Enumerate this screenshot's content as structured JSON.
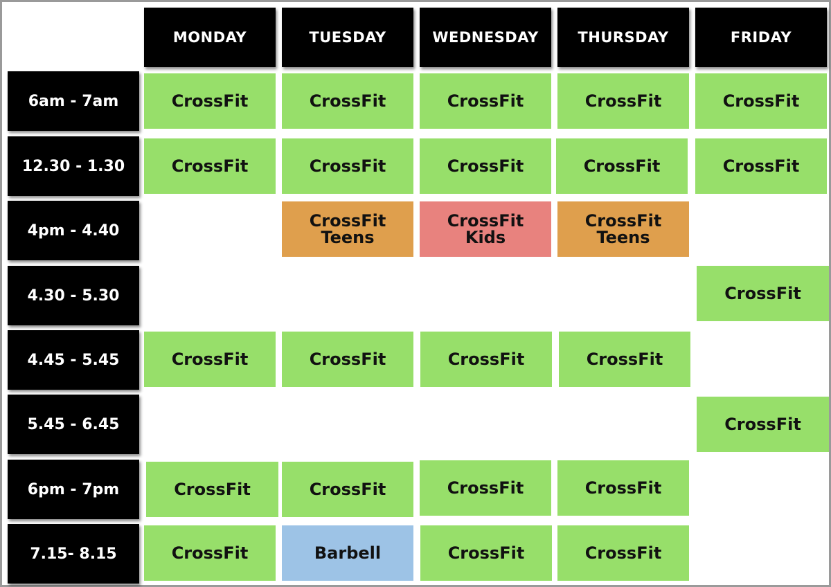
{
  "days": [
    "MONDAY",
    "TUESDAY",
    "WEDNESDAY",
    "THURSDAY",
    "FRIDAY"
  ],
  "times": [
    "6am - 7am",
    "12.30 - 1.30",
    "4pm - 4.40",
    "4.30 - 5.30",
    "4.45 - 5.45",
    "5.45 - 6.45",
    "6pm - 7pm",
    "7.15- 8.15"
  ],
  "colors": {
    "crossfit": "#97df6a",
    "teens": "#df9f4d",
    "kids": "#e8827e",
    "barbell": "#9dc3e6",
    "header_bg": "#000000",
    "header_text": "#ffffff"
  },
  "schedule": {
    "row0": {
      "mon": "CrossFit",
      "tue": "CrossFit",
      "wed": "CrossFit",
      "thu": "CrossFit",
      "fri": "CrossFit"
    },
    "row1": {
      "mon": "CrossFit",
      "tue": "CrossFit",
      "wed": "CrossFit",
      "thu": "CrossFit",
      "fri": "CrossFit"
    },
    "row2": {
      "tue": {
        "line1": "CrossFit",
        "line2": "Teens"
      },
      "wed": {
        "line1": "CrossFit",
        "line2": "Kids"
      },
      "thu": {
        "line1": "CrossFit",
        "line2": "Teens"
      }
    },
    "row3": {
      "fri": "CrossFit"
    },
    "row4": {
      "mon": "CrossFit",
      "tue": "CrossFit",
      "wed": "CrossFit",
      "thu": "CrossFit"
    },
    "row5": {
      "fri": "CrossFit"
    },
    "row6": {
      "mon": "CrossFit",
      "tue": "CrossFit",
      "wed": "CrossFit",
      "thu": "CrossFit"
    },
    "row7": {
      "mon": "CrossFit",
      "tue": "Barbell",
      "wed": "CrossFit",
      "thu": "CrossFit"
    }
  }
}
